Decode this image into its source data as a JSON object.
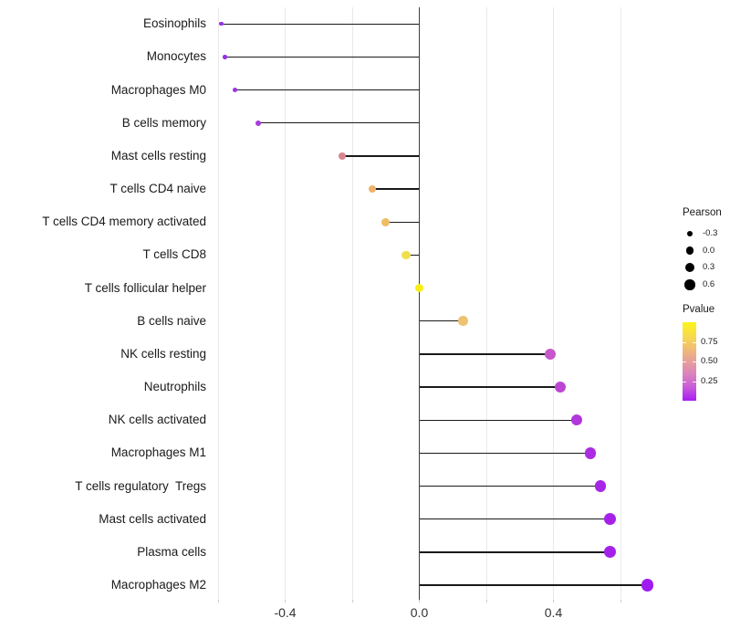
{
  "chart_data": {
    "type": "scatter",
    "style": "lollipop",
    "orientation": "horizontal",
    "title": "",
    "xlabel": "",
    "ylabel": "",
    "xlim": [
      -0.65,
      0.74
    ],
    "baseline_x": 0,
    "grid": true,
    "x_gridlines": [
      -0.6,
      -0.4,
      -0.2,
      0.0,
      0.2,
      0.4,
      0.6
    ],
    "x_ticks": [
      {
        "value": -0.4,
        "label": "-0.4"
      },
      {
        "value": 0.0,
        "label": "0.0"
      },
      {
        "value": 0.4,
        "label": "0.4"
      }
    ],
    "categories": [
      "Eosinophils",
      "Monocytes",
      "Macrophages M0",
      "B cells memory",
      "Mast cells resting",
      "T cells CD4 naive",
      "T cells CD4 memory activated",
      "T cells CD8",
      "T cells follicular helper",
      "B cells naive",
      "NK cells resting",
      "Neutrophils",
      "NK cells activated",
      "Macrophages M1",
      "T cells regulatory  Tregs",
      "Mast cells activated",
      "Plasma cells",
      "Macrophages M2"
    ],
    "points": [
      {
        "category": "Eosinophils",
        "pearson": -0.59,
        "pvalue_approx": 0.02,
        "color": "#9430E4"
      },
      {
        "category": "Monocytes",
        "pearson": -0.58,
        "pvalue_approx": 0.02,
        "color": "#9430E4"
      },
      {
        "category": "Macrophages M0",
        "pearson": -0.55,
        "pvalue_approx": 0.03,
        "color": "#9B33E2"
      },
      {
        "category": "B cells memory",
        "pearson": -0.48,
        "pvalue_approx": 0.06,
        "color": "#A83CDC"
      },
      {
        "category": "Mast cells resting",
        "pearson": -0.23,
        "pvalue_approx": 0.45,
        "color": "#D9848E"
      },
      {
        "category": "T cells CD4 naive",
        "pearson": -0.14,
        "pvalue_approx": 0.62,
        "color": "#EFB369"
      },
      {
        "category": "T cells CD4 memory activated",
        "pearson": -0.1,
        "pvalue_approx": 0.65,
        "color": "#EEBC62"
      },
      {
        "category": "T cells CD8",
        "pearson": -0.04,
        "pvalue_approx": 0.82,
        "color": "#F2DE4D"
      },
      {
        "category": "T cells follicular helper",
        "pearson": 0.0,
        "pvalue_approx": 0.97,
        "color": "#F9ED16"
      },
      {
        "category": "B cells naive",
        "pearson": 0.13,
        "pvalue_approx": 0.6,
        "color": "#EDC273"
      },
      {
        "category": "NK cells resting",
        "pearson": 0.39,
        "pvalue_approx": 0.28,
        "color": "#C657CB"
      },
      {
        "category": "Neutrophils",
        "pearson": 0.42,
        "pvalue_approx": 0.2,
        "color": "#BC46D3"
      },
      {
        "category": "NK cells activated",
        "pearson": 0.47,
        "pvalue_approx": 0.12,
        "color": "#B136DC"
      },
      {
        "category": "Macrophages M1",
        "pearson": 0.51,
        "pvalue_approx": 0.08,
        "color": "#AB2CE2"
      },
      {
        "category": "T cells regulatory  Tregs",
        "pearson": 0.54,
        "pvalue_approx": 0.06,
        "color": "#A726E6"
      },
      {
        "category": "Mast cells activated",
        "pearson": 0.57,
        "pvalue_approx": 0.05,
        "color": "#A521E9"
      },
      {
        "category": "Plasma cells",
        "pearson": 0.57,
        "pvalue_approx": 0.05,
        "color": "#A521E9"
      },
      {
        "category": "Macrophages M2",
        "pearson": 0.68,
        "pvalue_approx": 0.01,
        "color": "#A01BF0"
      }
    ],
    "legend_position": "right"
  },
  "legends": {
    "size": {
      "title": "Pearson",
      "dot_color": "#000000",
      "entries": [
        {
          "label": "-0.3",
          "value": -0.3
        },
        {
          "label": "0.0",
          "value": 0.0
        },
        {
          "label": "0.3",
          "value": 0.3
        },
        {
          "label": "0.6",
          "value": 0.6
        }
      ]
    },
    "color": {
      "title": "Pvalue",
      "range": [
        0,
        1
      ],
      "gradient": [
        "#FBF51A",
        "#F6DA4E",
        "#F0BA78",
        "#E69F9B",
        "#DB84BE",
        "#C95DD8",
        "#A91EF2"
      ],
      "ticks": [
        {
          "label": "0.75",
          "value": 0.75
        },
        {
          "label": "0.50",
          "value": 0.5
        },
        {
          "label": "0.25",
          "value": 0.25
        }
      ]
    }
  },
  "colors": {
    "background": "#FFFFFF",
    "gridline": "#E9E9E9",
    "zero_line": "#3F3F3F",
    "stem": "#1A1A1A",
    "axis_text": "#333333",
    "category_text": "#1A1A1A"
  }
}
